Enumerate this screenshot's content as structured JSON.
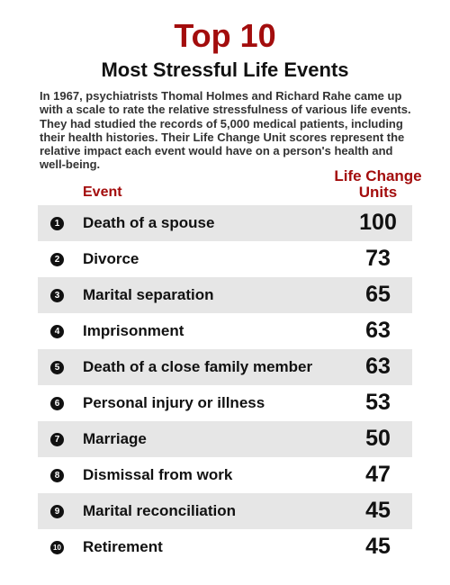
{
  "title": "Top 10",
  "subtitle": "Most Stressful Life Events",
  "intro": "In 1967,  psychiatrists Thomal Holmes and Richard Rahe came up with a scale to rate the relative stressfulness of various life events. They had studied the records of 5,000 medical patients, including their health histories. Their Life Change Unit scores represent the relative impact each event would have on a person's health and well-being.",
  "headers": {
    "event": "Event",
    "units_line1": "Life Change",
    "units_line2": "Units"
  },
  "events": [
    {
      "rank": "1",
      "event": "Death of a spouse",
      "units": "100"
    },
    {
      "rank": "2",
      "event": "Divorce",
      "units": "73"
    },
    {
      "rank": "3",
      "event": "Marital separation",
      "units": "65"
    },
    {
      "rank": "4",
      "event": "Imprisonment",
      "units": "63"
    },
    {
      "rank": "5",
      "event": "Death of a close family member",
      "units": "63"
    },
    {
      "rank": "6",
      "event": "Personal injury or illness",
      "units": "53"
    },
    {
      "rank": "7",
      "event": "Marriage",
      "units": "50"
    },
    {
      "rank": "8",
      "event": "Dismissal from work",
      "units": "47"
    },
    {
      "rank": "9",
      "event": "Marital reconciliation",
      "units": "45"
    },
    {
      "rank": "10",
      "event": "Retirement",
      "units": "45"
    }
  ],
  "colors": {
    "accent": "#a30d0d",
    "row_shade": "#e6e6e6",
    "text": "#111111"
  }
}
